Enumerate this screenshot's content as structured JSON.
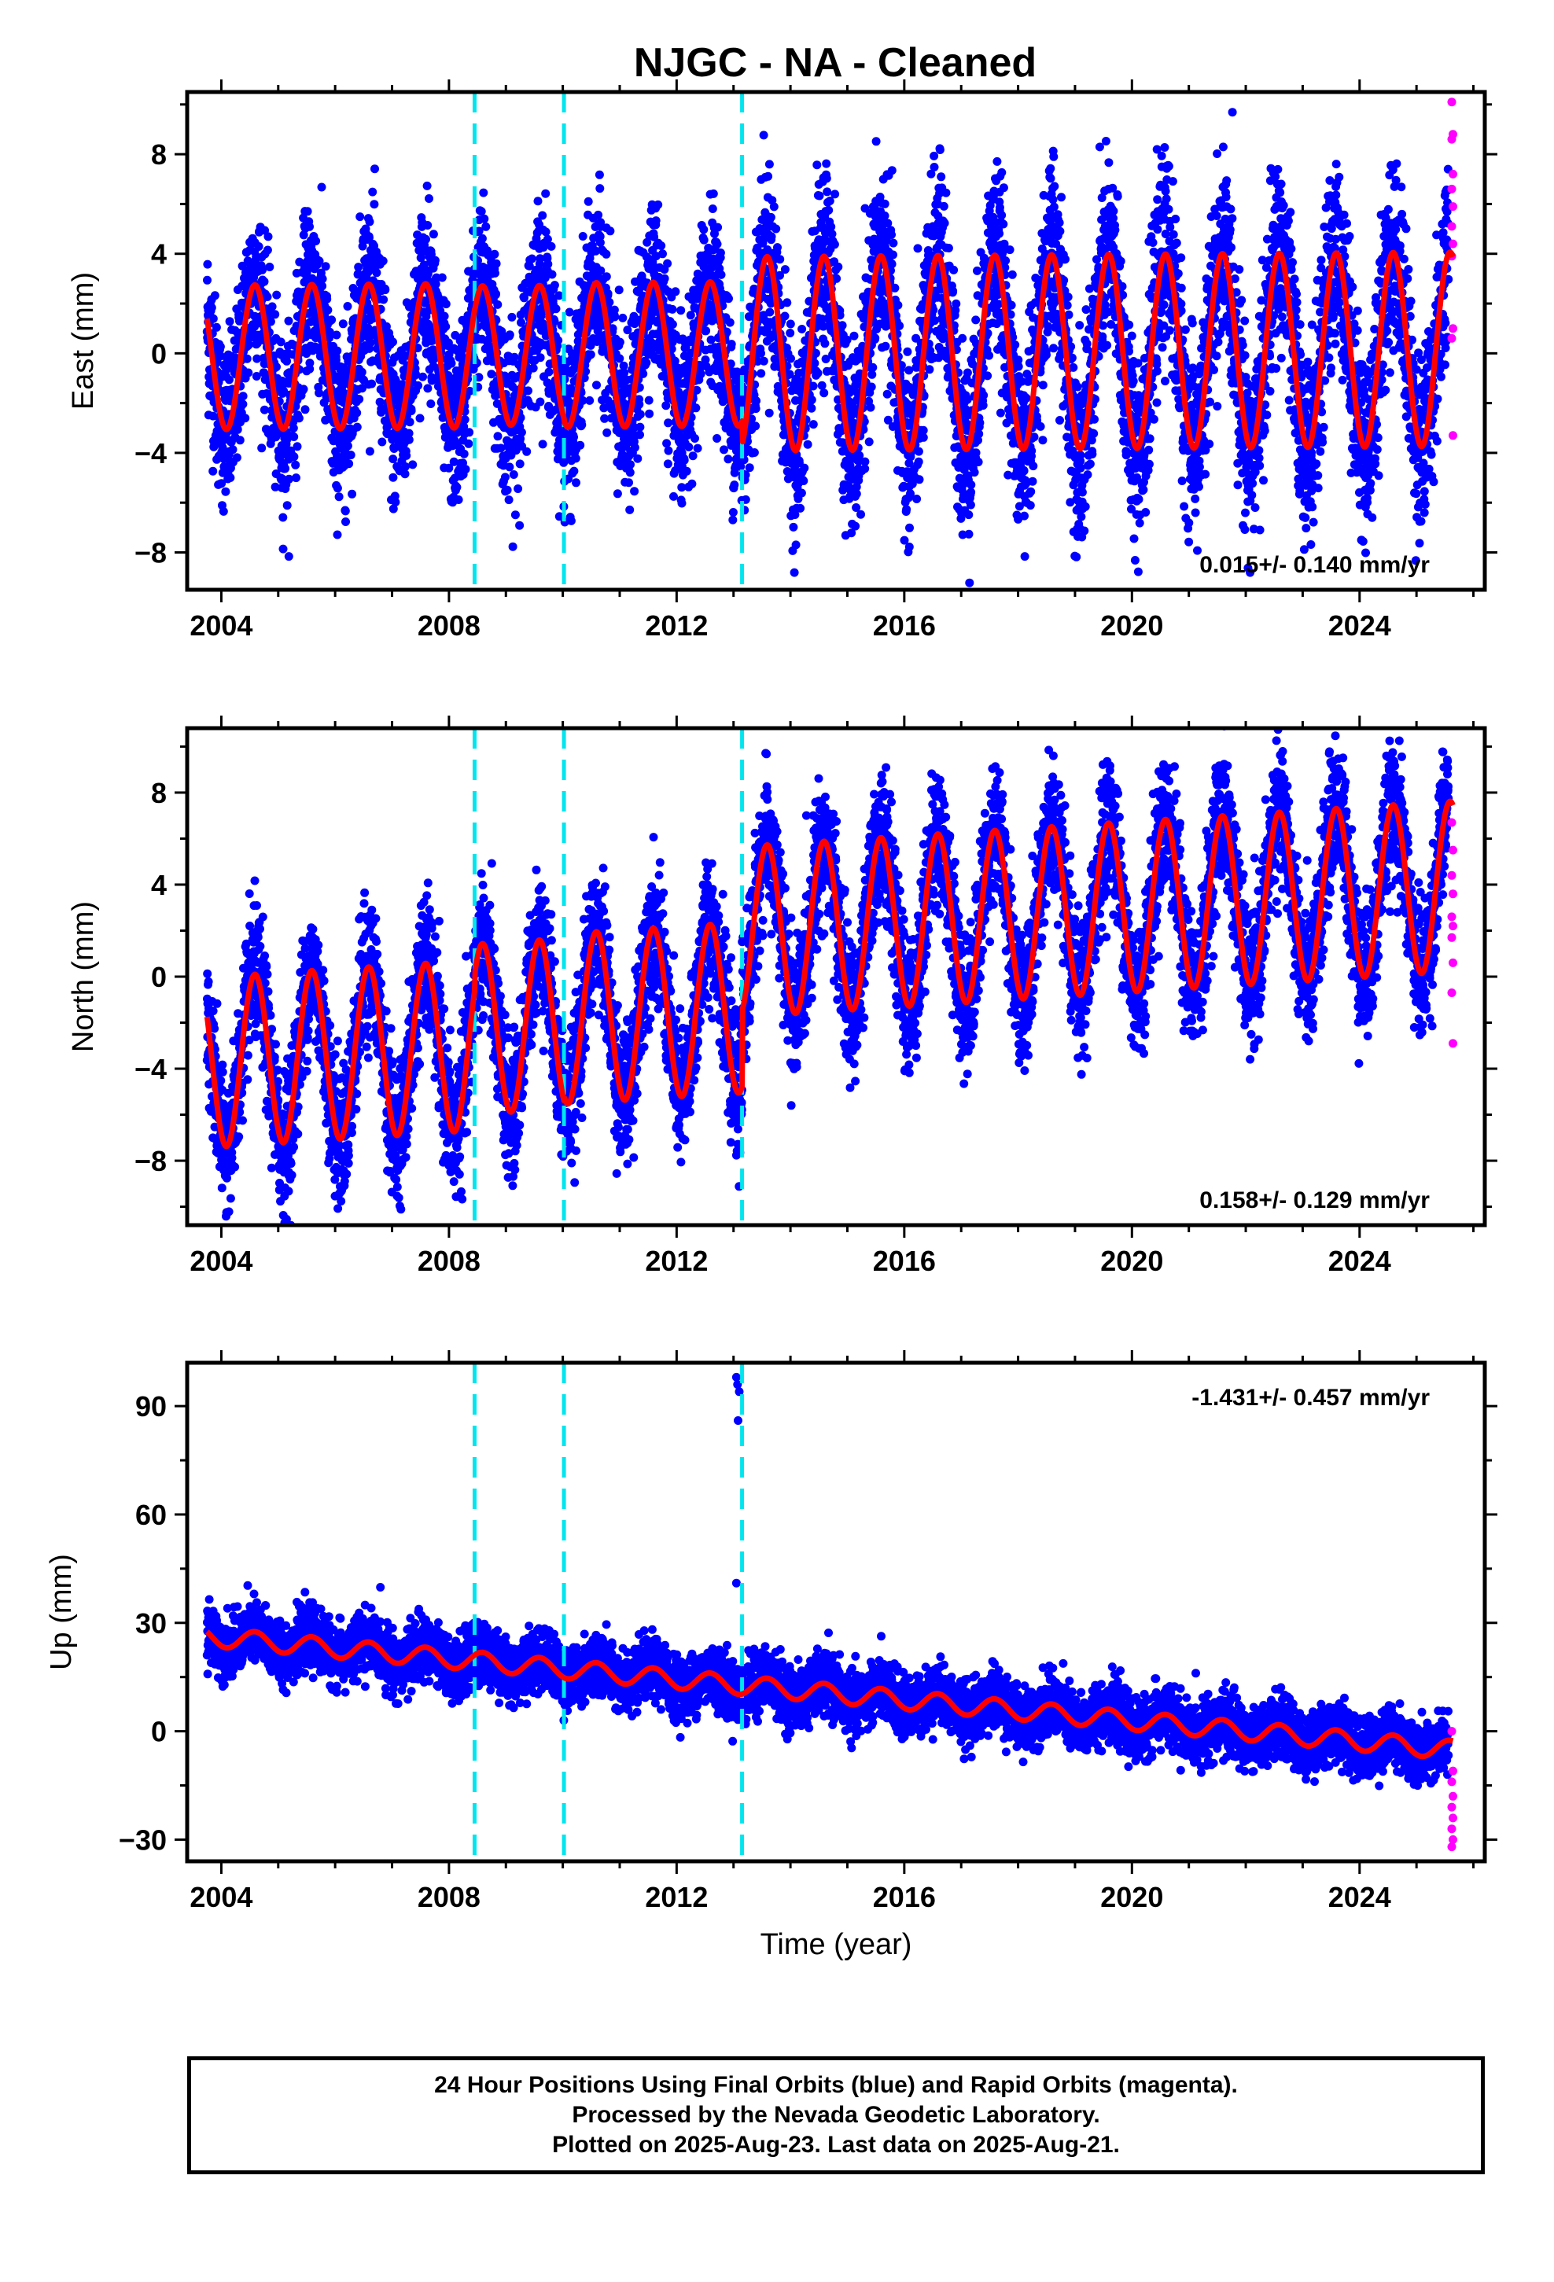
{
  "title": "NJGC  - NA - Cleaned",
  "colors": {
    "final_orbits": "#0000ff",
    "rapid_orbits": "#ff00ff",
    "model": "#ff0000",
    "equipment_change": "#00e5ee"
  },
  "chart_data": [
    {
      "type": "scatter",
      "component": "East",
      "ylabel": "East (mm)",
      "xlabel": "",
      "xlim": [
        2003.4,
        2026.2
      ],
      "ylim": [
        -9.5,
        10.5
      ],
      "x_ticks": [
        2004,
        2008,
        2012,
        2016,
        2020,
        2024
      ],
      "y_ticks": [
        -8,
        -4,
        0,
        4,
        8
      ],
      "y_tick_labels": [
        "−8",
        "−4",
        "0",
        "4",
        "8"
      ],
      "data_start": 2003.75,
      "data_end": 2025.64,
      "equipment_changes": [
        2008.45,
        2010.02,
        2013.15
      ],
      "offsets": [
        0,
        0,
        0,
        0
      ],
      "seasonal_amplitude": [
        2.9,
        2.8,
        2.9,
        3.9
      ],
      "trend_rate": 0.015,
      "scatter_sd": 1.6,
      "rapid_values": [
        10.1,
        8.8,
        8.6,
        7.2,
        6.6,
        5.9,
        5.1,
        4.4,
        3.9,
        1.0,
        0.6,
        -3.3
      ],
      "rate_text": "0.015+/- 0.140 mm/yr",
      "rate_position": "bottom-right"
    },
    {
      "type": "scatter",
      "component": "North",
      "ylabel": "North (mm)",
      "xlabel": "",
      "xlim": [
        2003.4,
        2026.2
      ],
      "ylim": [
        -10.8,
        10.8
      ],
      "x_ticks": [
        2004,
        2008,
        2012,
        2016,
        2020,
        2024
      ],
      "y_ticks": [
        -8,
        -4,
        0,
        4,
        8
      ],
      "y_tick_labels": [
        "−8",
        "−4",
        "0",
        "4",
        "8"
      ],
      "data_start": 2003.75,
      "data_end": 2025.64,
      "equipment_changes": [
        2008.45,
        2010.02,
        2013.15
      ],
      "offsets": [
        -2.0,
        -1.3,
        -1.1,
        2.2
      ],
      "seasonal_amplitude": [
        3.7,
        3.7,
        3.7,
        3.7
      ],
      "trend_rate": 0.158,
      "scatter_sd": 1.3,
      "rapid_values": [
        6.7,
        5.5,
        4.4,
        3.6,
        2.6,
        2.2,
        1.7,
        0.6,
        -0.7,
        -2.9
      ],
      "rate_text": "0.158+/- 0.129 mm/yr",
      "rate_position": "bottom-right"
    },
    {
      "type": "scatter",
      "component": "Up",
      "ylabel": "Up (mm)",
      "xlabel": "Time (year)",
      "xlim": [
        2003.4,
        2026.2
      ],
      "ylim": [
        -36,
        102
      ],
      "x_ticks": [
        2004,
        2008,
        2012,
        2016,
        2020,
        2024
      ],
      "y_ticks": [
        -30,
        0,
        30,
        60,
        90
      ],
      "y_tick_labels": [
        "−30",
        "0",
        "30",
        "60",
        "90"
      ],
      "data_start": 2003.75,
      "data_end": 2025.64,
      "equipment_changes": [
        2008.45,
        2010.02,
        2013.15
      ],
      "offsets": [
        10.5,
        10.5,
        10.5,
        10.5
      ],
      "seasonal_amplitude": [
        2.6,
        2.6,
        2.6,
        2.6
      ],
      "trend_rate": -1.431,
      "scatter_sd": 4.0,
      "outliers": [
        [
          2013.05,
          98
        ],
        [
          2013.07,
          96
        ],
        [
          2013.1,
          94
        ],
        [
          2013.08,
          86
        ],
        [
          2013.05,
          41
        ]
      ],
      "rapid_values": [
        0,
        -11,
        -14,
        -18,
        -21,
        -24,
        -27,
        -30,
        -32
      ],
      "rate_text": "-1.431+/- 0.457 mm/yr",
      "rate_position": "top-right"
    }
  ],
  "footer": {
    "line1": "24 Hour Positions Using Final Orbits (blue) and Rapid Orbits (magenta).",
    "line2": "Processed by the Nevada Geodetic Laboratory.",
    "line3": "Plotted on 2025-Aug-23. Last data on 2025-Aug-21."
  }
}
